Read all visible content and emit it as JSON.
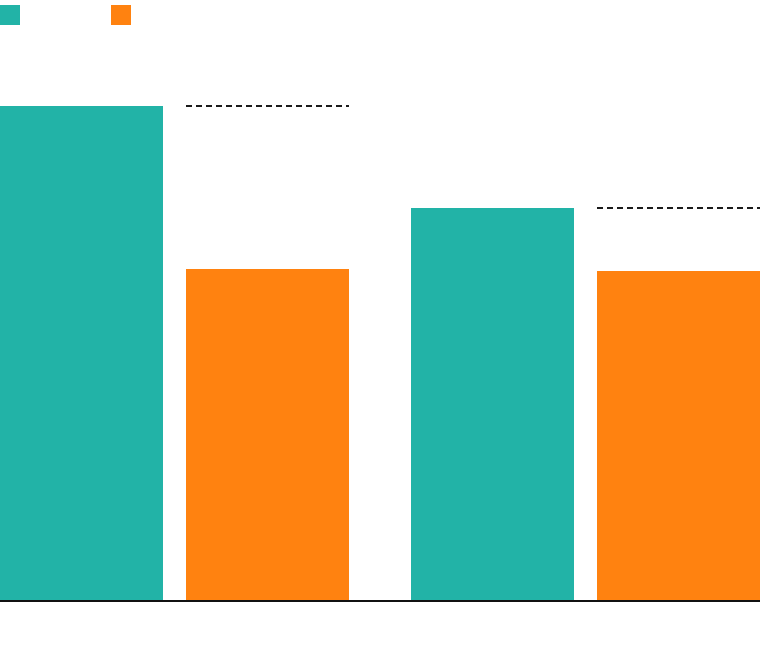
{
  "chart_data": {
    "type": "bar",
    "categories": [
      null,
      null
    ],
    "series": [
      {
        "color": "#22b3a7",
        "values": [
          495,
          393
        ]
      },
      {
        "color": "#ff8210",
        "values": [
          332,
          330
        ]
      }
    ],
    "ylim": [
      0,
      600
    ],
    "reference_lines": true
  }
}
